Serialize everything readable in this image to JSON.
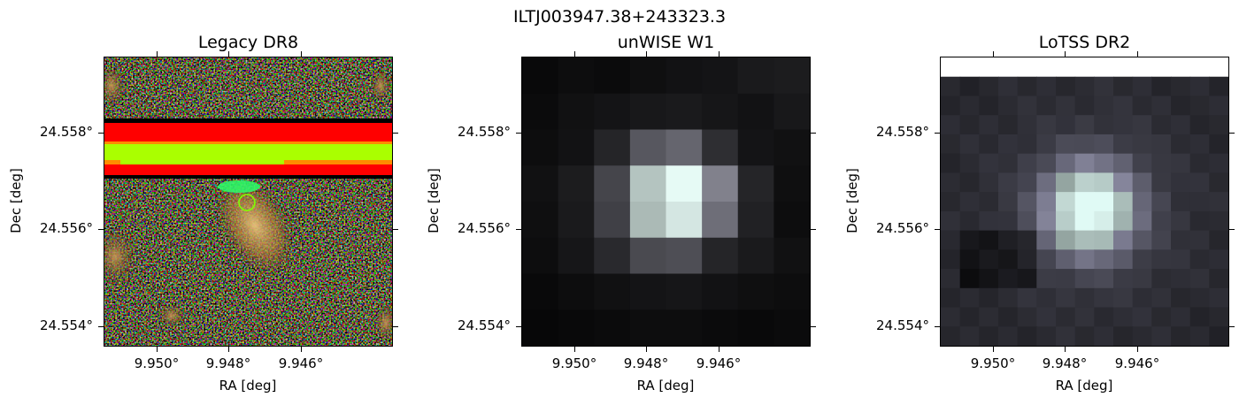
{
  "figure": {
    "title": "ILTJ003947.38+243323.3"
  },
  "panels": [
    {
      "id": "legacy",
      "title": "Legacy DR8",
      "xlabel": "RA [deg]",
      "ylabel": "Dec [deg]",
      "x_ticks": [
        "9.950°",
        "9.948°",
        "9.946°"
      ],
      "y_ticks": [
        "24.558°",
        "24.556°",
        "24.554°"
      ],
      "marker_color": "#7fff00"
    },
    {
      "id": "unwise",
      "title": "unWISE W1",
      "xlabel": "RA [deg]",
      "ylabel": "Dec [deg]",
      "x_ticks": [
        "9.950°",
        "9.948°",
        "9.946°"
      ],
      "y_ticks": [
        "24.558°",
        "24.556°",
        "24.554°"
      ],
      "marker_color": "#7fff00"
    },
    {
      "id": "lotss",
      "title": "LoTSS DR2",
      "xlabel": "RA [deg]",
      "ylabel": "Dec [deg]",
      "x_ticks": [
        "9.950°",
        "9.948°",
        "9.946°"
      ],
      "y_ticks": [
        "24.558°",
        "24.556°",
        "24.554°"
      ],
      "marker_color": "#7fff00"
    }
  ]
}
